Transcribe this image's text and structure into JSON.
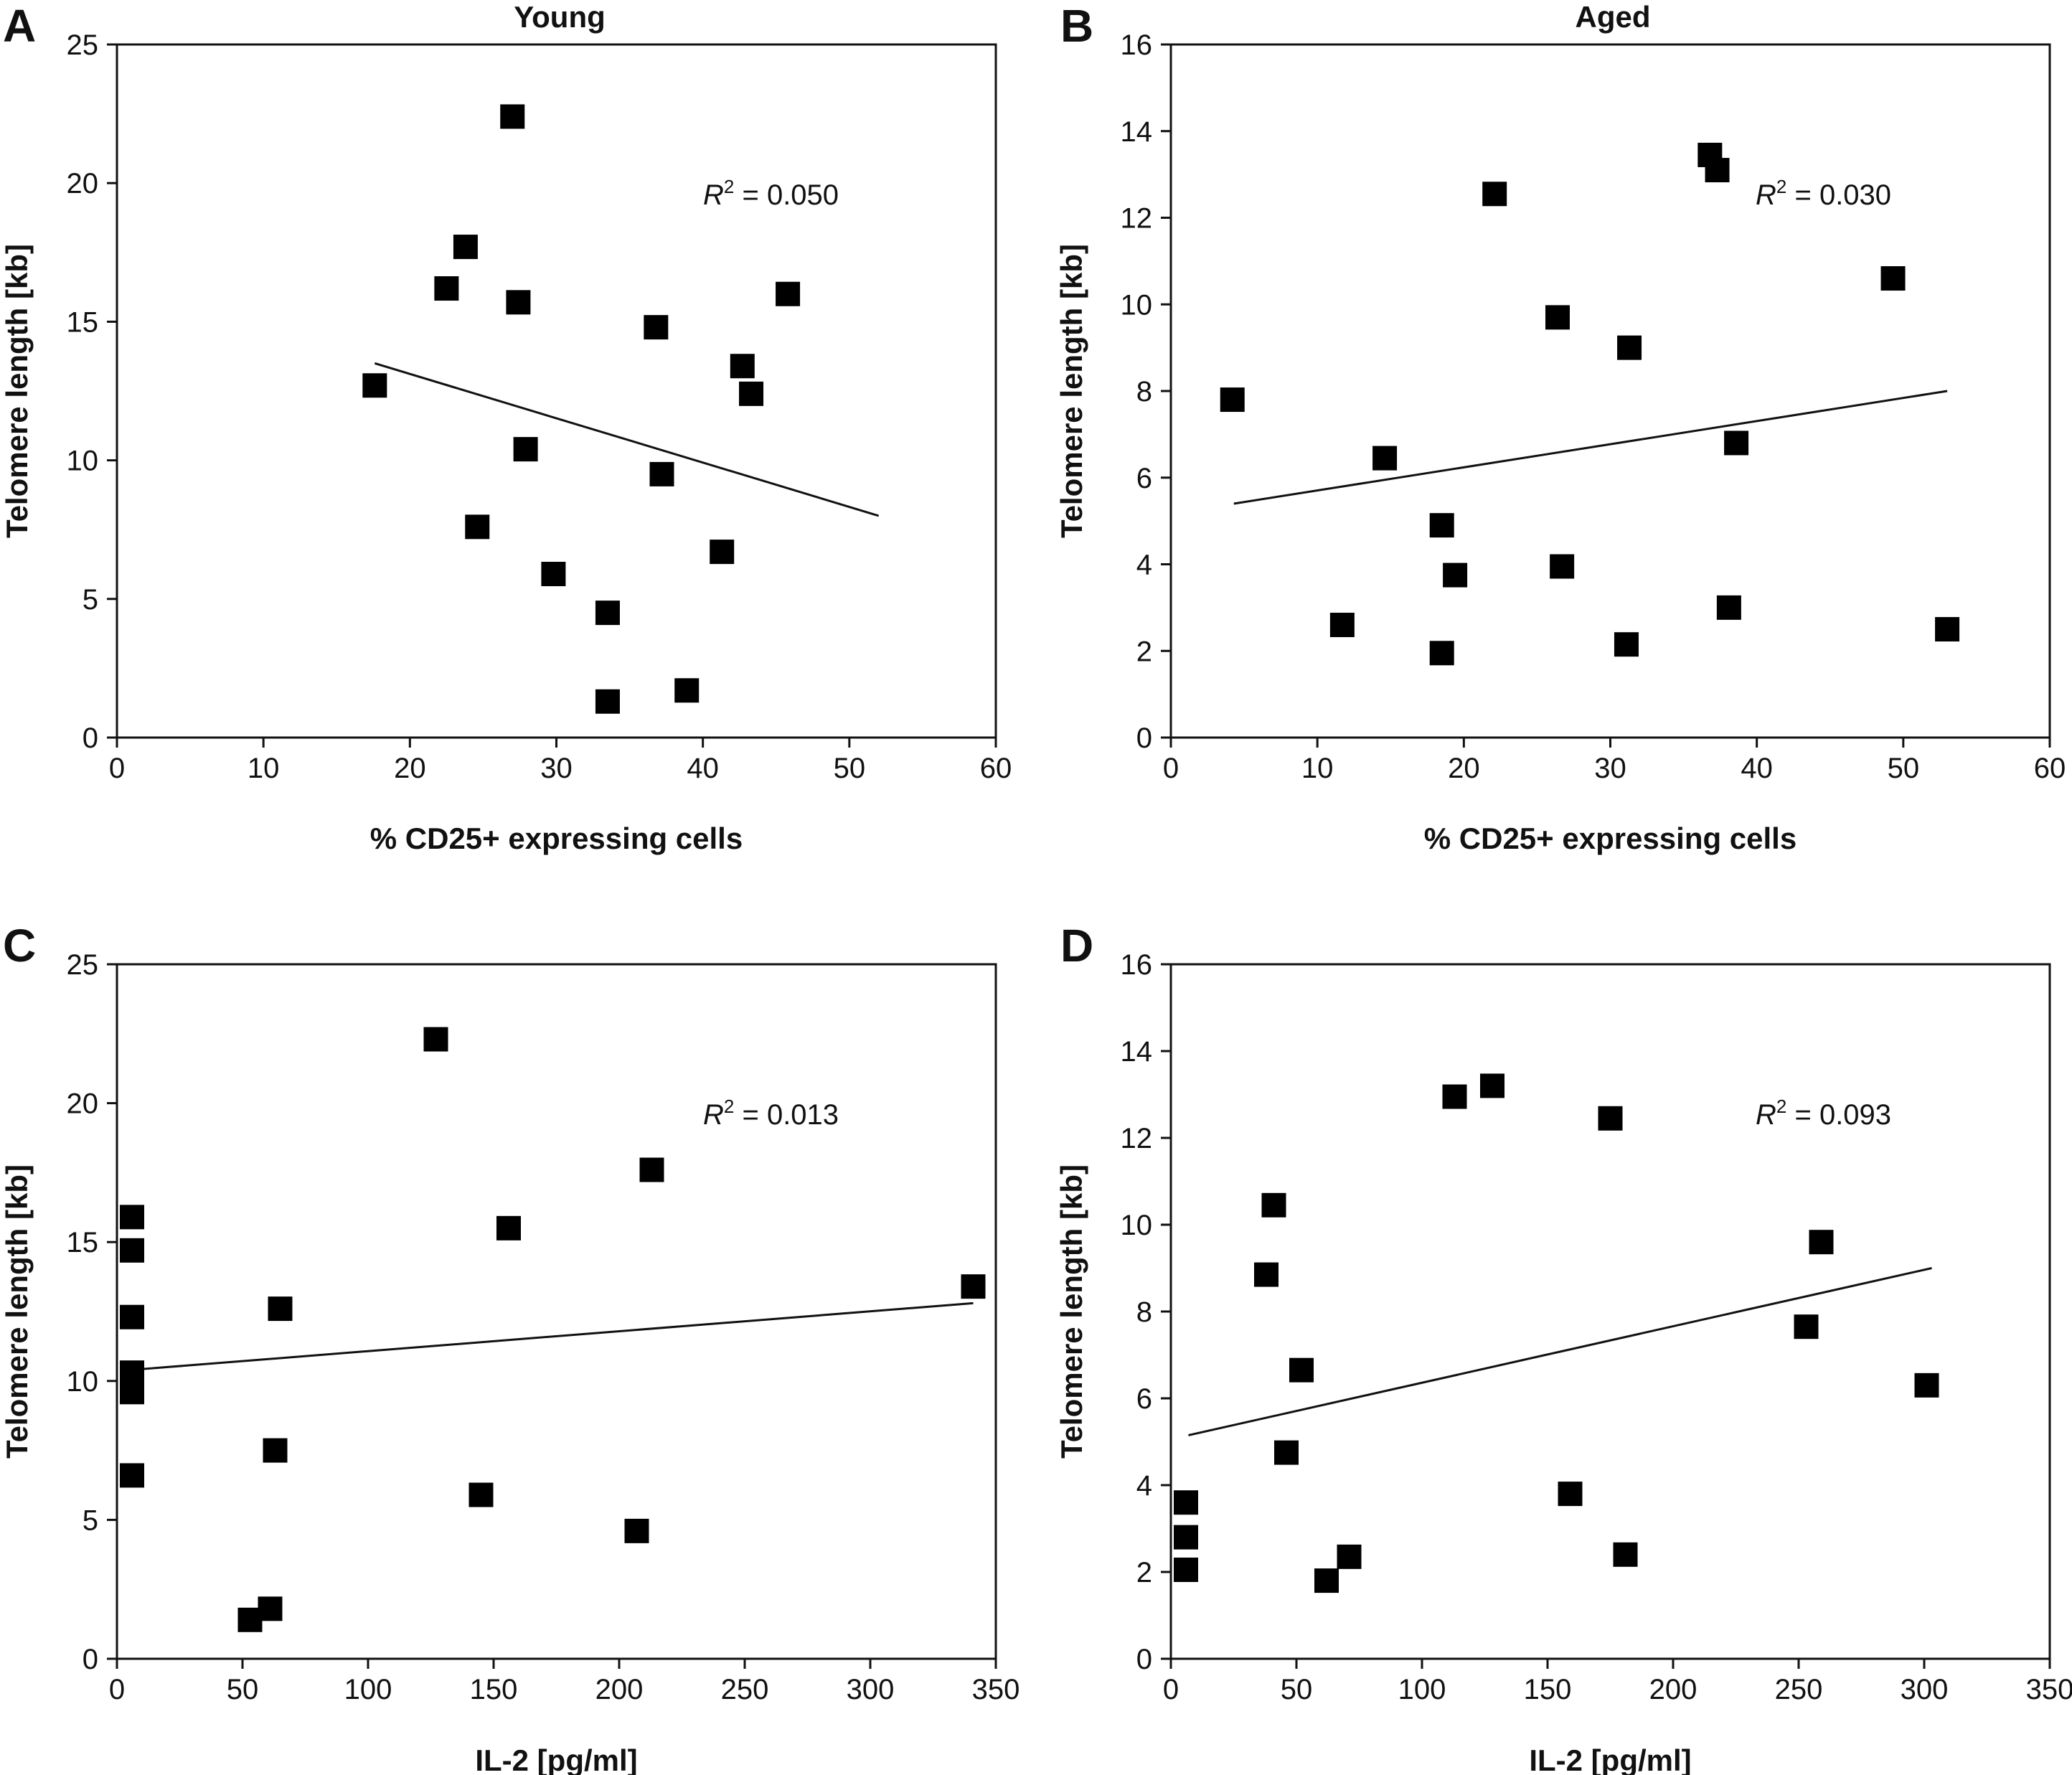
{
  "chart_data": [
    {
      "type": "scatter",
      "panel": "A",
      "title": "Young",
      "xlabel": "% CD25+ expressing cells",
      "ylabel": "Telomere length [kb]",
      "xlim": [
        0,
        60
      ],
      "ylim": [
        0,
        25
      ],
      "xticks": [
        0,
        10,
        20,
        30,
        40,
        50,
        60
      ],
      "yticks": [
        0,
        5,
        10,
        15,
        20,
        25
      ],
      "annotation": {
        "r2_symbol": "R",
        "r2_exp": "2",
        "r2_value": " = 0.050"
      },
      "grid": false,
      "marker": "square",
      "trendline": {
        "x": [
          17.6,
          52
        ],
        "y": [
          13.5,
          8.0
        ]
      },
      "points": [
        {
          "x": 17.6,
          "y": 12.7
        },
        {
          "x": 22.5,
          "y": 16.2
        },
        {
          "x": 23.8,
          "y": 17.7
        },
        {
          "x": 24.6,
          "y": 7.6
        },
        {
          "x": 27.0,
          "y": 22.4
        },
        {
          "x": 27.4,
          "y": 15.7
        },
        {
          "x": 27.9,
          "y": 10.4
        },
        {
          "x": 29.8,
          "y": 5.9
        },
        {
          "x": 33.5,
          "y": 4.5
        },
        {
          "x": 33.5,
          "y": 1.3
        },
        {
          "x": 36.8,
          "y": 14.8
        },
        {
          "x": 37.2,
          "y": 9.5
        },
        {
          "x": 38.9,
          "y": 1.7
        },
        {
          "x": 41.3,
          "y": 6.7
        },
        {
          "x": 42.7,
          "y": 13.4
        },
        {
          "x": 43.3,
          "y": 12.4
        },
        {
          "x": 45.8,
          "y": 16.0
        }
      ]
    },
    {
      "type": "scatter",
      "panel": "B",
      "title": "Aged",
      "xlabel": "% CD25+ expressing cells",
      "ylabel": "Telomere length [kb]",
      "xlim": [
        0,
        60
      ],
      "ylim": [
        0,
        16
      ],
      "xticks": [
        0,
        10,
        20,
        30,
        40,
        50,
        60
      ],
      "yticks": [
        0,
        2,
        4,
        6,
        8,
        10,
        12,
        14,
        16
      ],
      "annotation": {
        "r2_symbol": "R",
        "r2_exp": "2",
        "r2_value": " = 0.030"
      },
      "grid": false,
      "marker": "square",
      "trendline": {
        "x": [
          4.3,
          53
        ],
        "y": [
          5.4,
          8.0
        ]
      },
      "points": [
        {
          "x": 4.2,
          "y": 7.8
        },
        {
          "x": 11.7,
          "y": 2.6
        },
        {
          "x": 14.6,
          "y": 6.45
        },
        {
          "x": 18.5,
          "y": 4.9
        },
        {
          "x": 18.5,
          "y": 1.95
        },
        {
          "x": 19.4,
          "y": 3.75
        },
        {
          "x": 22.1,
          "y": 12.55
        },
        {
          "x": 26.4,
          "y": 9.7
        },
        {
          "x": 26.7,
          "y": 3.95
        },
        {
          "x": 31.1,
          "y": 2.15
        },
        {
          "x": 31.3,
          "y": 9.0
        },
        {
          "x": 36.8,
          "y": 13.45
        },
        {
          "x": 37.3,
          "y": 13.1
        },
        {
          "x": 38.1,
          "y": 3.0
        },
        {
          "x": 38.6,
          "y": 6.8
        },
        {
          "x": 49.3,
          "y": 10.6
        },
        {
          "x": 53.0,
          "y": 2.5
        }
      ]
    },
    {
      "type": "scatter",
      "panel": "C",
      "title": "",
      "xlabel": "IL-2 [pg/ml]",
      "ylabel": "Telomere length [kb]",
      "xlim": [
        0,
        350
      ],
      "ylim": [
        0,
        25
      ],
      "xticks": [
        0,
        50,
        100,
        150,
        200,
        250,
        300,
        350
      ],
      "yticks": [
        0,
        5,
        10,
        15,
        20,
        25
      ],
      "annotation": {
        "r2_symbol": "R",
        "r2_exp": "2",
        "r2_value": " = 0.013"
      },
      "grid": false,
      "marker": "square",
      "trendline": {
        "x": [
          6,
          341
        ],
        "y": [
          10.4,
          12.8
        ]
      },
      "points": [
        {
          "x": 6,
          "y": 15.9
        },
        {
          "x": 6,
          "y": 14.7
        },
        {
          "x": 6,
          "y": 12.3
        },
        {
          "x": 6,
          "y": 10.3
        },
        {
          "x": 6,
          "y": 9.6
        },
        {
          "x": 6,
          "y": 6.6
        },
        {
          "x": 53,
          "y": 1.4
        },
        {
          "x": 61,
          "y": 1.8
        },
        {
          "x": 63,
          "y": 7.5
        },
        {
          "x": 65,
          "y": 12.6
        },
        {
          "x": 127,
          "y": 22.3
        },
        {
          "x": 145,
          "y": 5.9
        },
        {
          "x": 156,
          "y": 15.5
        },
        {
          "x": 207,
          "y": 4.6
        },
        {
          "x": 213,
          "y": 17.6
        },
        {
          "x": 341,
          "y": 13.4
        }
      ]
    },
    {
      "type": "scatter",
      "panel": "D",
      "title": "",
      "xlabel": "IL-2 [pg/ml]",
      "ylabel": "Telomere length [kb]",
      "xlim": [
        0,
        350
      ],
      "ylim": [
        0,
        16
      ],
      "xticks": [
        0,
        50,
        100,
        150,
        200,
        250,
        300,
        350
      ],
      "yticks": [
        0,
        2,
        4,
        6,
        8,
        10,
        12,
        14,
        16
      ],
      "annotation": {
        "r2_symbol": "R",
        "r2_exp": "2",
        "r2_value": " = 0.093"
      },
      "grid": false,
      "marker": "square",
      "trendline": {
        "x": [
          7,
          303
        ],
        "y": [
          5.15,
          9.0
        ]
      },
      "points": [
        {
          "x": 6,
          "y": 3.6
        },
        {
          "x": 6,
          "y": 2.8
        },
        {
          "x": 6,
          "y": 2.05
        },
        {
          "x": 38,
          "y": 8.85
        },
        {
          "x": 41,
          "y": 10.45
        },
        {
          "x": 46,
          "y": 4.75
        },
        {
          "x": 52,
          "y": 6.65
        },
        {
          "x": 62,
          "y": 1.8
        },
        {
          "x": 71,
          "y": 2.35
        },
        {
          "x": 113,
          "y": 12.95
        },
        {
          "x": 128,
          "y": 13.2
        },
        {
          "x": 159,
          "y": 3.8
        },
        {
          "x": 175,
          "y": 12.45
        },
        {
          "x": 181,
          "y": 2.4
        },
        {
          "x": 253,
          "y": 7.65
        },
        {
          "x": 259,
          "y": 9.6
        },
        {
          "x": 301,
          "y": 6.3
        }
      ]
    }
  ]
}
